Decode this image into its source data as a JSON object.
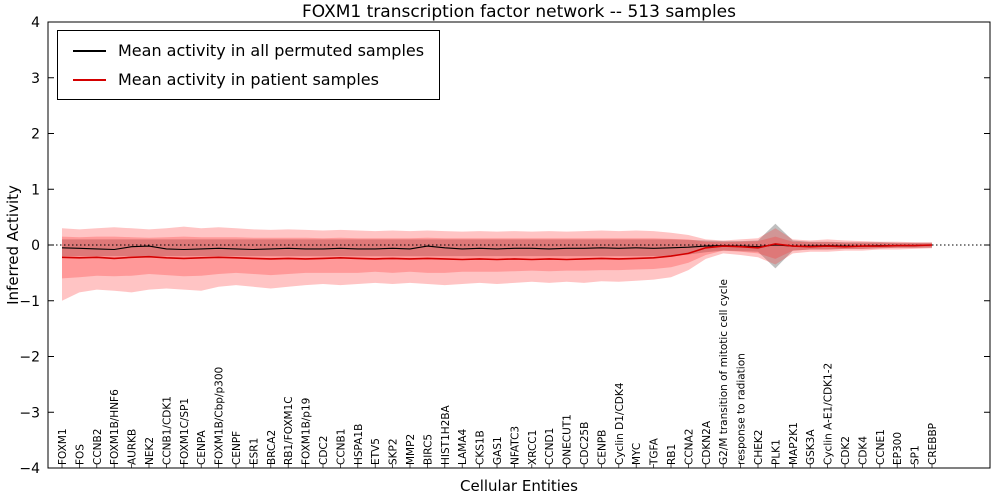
{
  "chart_data": {
    "type": "line",
    "title": "FOXM1 transcription factor network -- 513 samples",
    "xlabel": "Cellular Entities",
    "ylabel": "Inferred Activity",
    "ylim": [
      -4,
      4
    ],
    "yticks": [
      -4,
      -3,
      -2,
      -1,
      0,
      1,
      2,
      3,
      4
    ],
    "grid": false,
    "zero_line": true,
    "legend_position": "upper left",
    "categories": [
      "FOXM1",
      "FOS",
      "CCNB2",
      "FOXM1B/HNF6",
      "AURKB",
      "NEK2",
      "CCNB1/CDK1",
      "FOXM1C/SP1",
      "CENPA",
      "FOXM1B/Cbp/p300",
      "CENPF",
      "ESR1",
      "BRCA2",
      "RB1/FOXM1C",
      "FOXM1B/p19",
      "CDC2",
      "CCNB1",
      "HSPA1B",
      "ETV5",
      "SKP2",
      "MMP2",
      "BIRC5",
      "HIST1H2BA",
      "LAMA4",
      "CKS1B",
      "GAS1",
      "NFATC3",
      "XRCC1",
      "CCND1",
      "ONECUT1",
      "CDC25B",
      "CENPB",
      "Cyclin D1/CDK4",
      "MYC",
      "TGFA",
      "RB1",
      "CCNA2",
      "CDKN2A",
      "G2/M transition of mitotic cell cycle",
      "response to radiation",
      "CHEK2",
      "PLK1",
      "MAP2K1",
      "GSK3A",
      "Cyclin A-E1/CDK1-2",
      "CDK2",
      "CDK4",
      "CCNE1",
      "EP300",
      "SP1",
      "CREBBP"
    ],
    "series": [
      {
        "name": "Mean activity in all permuted samples",
        "color": "#000000",
        "values": [
          -0.05,
          -0.06,
          -0.07,
          -0.08,
          -0.03,
          -0.02,
          -0.07,
          -0.08,
          -0.07,
          -0.06,
          -0.07,
          -0.08,
          -0.07,
          -0.06,
          -0.07,
          -0.07,
          -0.06,
          -0.07,
          -0.07,
          -0.06,
          -0.07,
          -0.02,
          -0.05,
          -0.07,
          -0.06,
          -0.07,
          -0.06,
          -0.06,
          -0.07,
          -0.06,
          -0.06,
          -0.05,
          -0.06,
          -0.05,
          -0.06,
          -0.05,
          -0.04,
          -0.02,
          -0.01,
          -0.02,
          -0.03,
          0.0,
          -0.02,
          -0.02,
          -0.01,
          -0.02,
          -0.02,
          -0.01,
          -0.01,
          -0.01,
          0.0
        ]
      },
      {
        "name": "Mean activity in patient samples",
        "color": "#d40000",
        "values": [
          -0.22,
          -0.23,
          -0.22,
          -0.24,
          -0.22,
          -0.21,
          -0.23,
          -0.24,
          -0.23,
          -0.22,
          -0.23,
          -0.24,
          -0.25,
          -0.24,
          -0.25,
          -0.24,
          -0.23,
          -0.24,
          -0.25,
          -0.24,
          -0.25,
          -0.24,
          -0.25,
          -0.26,
          -0.25,
          -0.26,
          -0.25,
          -0.26,
          -0.25,
          -0.26,
          -0.25,
          -0.24,
          -0.25,
          -0.24,
          -0.23,
          -0.2,
          -0.15,
          -0.05,
          -0.02,
          -0.03,
          -0.05,
          0.02,
          -0.02,
          -0.03,
          -0.02,
          -0.03,
          -0.02,
          -0.02,
          -0.01,
          -0.01,
          0.0
        ]
      }
    ],
    "bands": [
      {
        "name": "permuted-samples-range-band",
        "color": "#8a8a8a",
        "opacity": 0.55,
        "upper": [
          0.1,
          0.1,
          0.1,
          0.1,
          0.1,
          0.1,
          0.1,
          0.1,
          0.1,
          0.1,
          0.1,
          0.1,
          0.1,
          0.1,
          0.1,
          0.1,
          0.1,
          0.1,
          0.1,
          0.1,
          0.1,
          0.1,
          0.1,
          0.1,
          0.1,
          0.1,
          0.1,
          0.1,
          0.1,
          0.1,
          0.1,
          0.1,
          0.1,
          0.1,
          0.1,
          0.1,
          0.09,
          0.08,
          0.07,
          0.07,
          0.08,
          0.38,
          0.08,
          0.06,
          0.06,
          0.05,
          0.05,
          0.05,
          0.04,
          0.04,
          0.04
        ],
        "lower": [
          -0.2,
          -0.2,
          -0.2,
          -0.2,
          -0.2,
          -0.2,
          -0.2,
          -0.2,
          -0.2,
          -0.2,
          -0.2,
          -0.2,
          -0.2,
          -0.2,
          -0.2,
          -0.2,
          -0.2,
          -0.2,
          -0.2,
          -0.2,
          -0.2,
          -0.2,
          -0.2,
          -0.2,
          -0.2,
          -0.2,
          -0.2,
          -0.2,
          -0.2,
          -0.2,
          -0.2,
          -0.2,
          -0.2,
          -0.2,
          -0.2,
          -0.19,
          -0.17,
          -0.13,
          -0.1,
          -0.11,
          -0.12,
          -0.42,
          -0.1,
          -0.08,
          -0.08,
          -0.07,
          -0.07,
          -0.06,
          -0.05,
          -0.05,
          -0.05
        ]
      },
      {
        "name": "patient-samples-outer-band",
        "color": "#ff2a2a",
        "opacity": 0.28,
        "upper": [
          0.3,
          0.28,
          0.3,
          0.32,
          0.3,
          0.28,
          0.3,
          0.33,
          0.3,
          0.32,
          0.3,
          0.28,
          0.27,
          0.28,
          0.27,
          0.26,
          0.27,
          0.26,
          0.25,
          0.26,
          0.25,
          0.26,
          0.25,
          0.24,
          0.25,
          0.24,
          0.25,
          0.24,
          0.25,
          0.24,
          0.25,
          0.26,
          0.25,
          0.26,
          0.25,
          0.22,
          0.18,
          0.1,
          0.08,
          0.1,
          0.12,
          0.3,
          0.1,
          0.08,
          0.1,
          0.08,
          0.07,
          0.06,
          0.06,
          0.05,
          0.05
        ],
        "lower": [
          -1.0,
          -0.85,
          -0.8,
          -0.82,
          -0.85,
          -0.8,
          -0.78,
          -0.8,
          -0.82,
          -0.75,
          -0.72,
          -0.75,
          -0.78,
          -0.75,
          -0.72,
          -0.7,
          -0.72,
          -0.7,
          -0.68,
          -0.7,
          -0.68,
          -0.7,
          -0.72,
          -0.7,
          -0.68,
          -0.7,
          -0.68,
          -0.66,
          -0.68,
          -0.66,
          -0.68,
          -0.65,
          -0.66,
          -0.64,
          -0.62,
          -0.58,
          -0.45,
          -0.25,
          -0.15,
          -0.18,
          -0.22,
          -0.35,
          -0.15,
          -0.12,
          -0.12,
          -0.1,
          -0.1,
          -0.08,
          -0.08,
          -0.07,
          -0.06
        ]
      },
      {
        "name": "patient-samples-inner-band",
        "color": "#ff2a2a",
        "opacity": 0.28,
        "upper": [
          0.15,
          0.14,
          0.15,
          0.15,
          0.14,
          0.13,
          0.14,
          0.15,
          0.14,
          0.14,
          0.14,
          0.13,
          0.13,
          0.13,
          0.13,
          0.12,
          0.13,
          0.12,
          0.12,
          0.12,
          0.12,
          0.13,
          0.12,
          0.12,
          0.12,
          0.12,
          0.12,
          0.12,
          0.12,
          0.12,
          0.12,
          0.12,
          0.12,
          0.12,
          0.12,
          0.11,
          0.1,
          0.06,
          0.05,
          0.06,
          0.07,
          0.15,
          0.06,
          0.05,
          0.05,
          0.04,
          0.04,
          0.04,
          0.03,
          0.03,
          0.03
        ],
        "lower": [
          -0.6,
          -0.58,
          -0.55,
          -0.56,
          -0.55,
          -0.52,
          -0.54,
          -0.56,
          -0.55,
          -0.52,
          -0.5,
          -0.52,
          -0.54,
          -0.52,
          -0.5,
          -0.5,
          -0.5,
          -0.5,
          -0.48,
          -0.5,
          -0.48,
          -0.5,
          -0.5,
          -0.48,
          -0.48,
          -0.48,
          -0.47,
          -0.46,
          -0.47,
          -0.46,
          -0.46,
          -0.45,
          -0.45,
          -0.44,
          -0.43,
          -0.4,
          -0.32,
          -0.18,
          -0.1,
          -0.12,
          -0.15,
          -0.25,
          -0.1,
          -0.08,
          -0.08,
          -0.07,
          -0.07,
          -0.06,
          -0.05,
          -0.05,
          -0.04
        ]
      }
    ]
  }
}
